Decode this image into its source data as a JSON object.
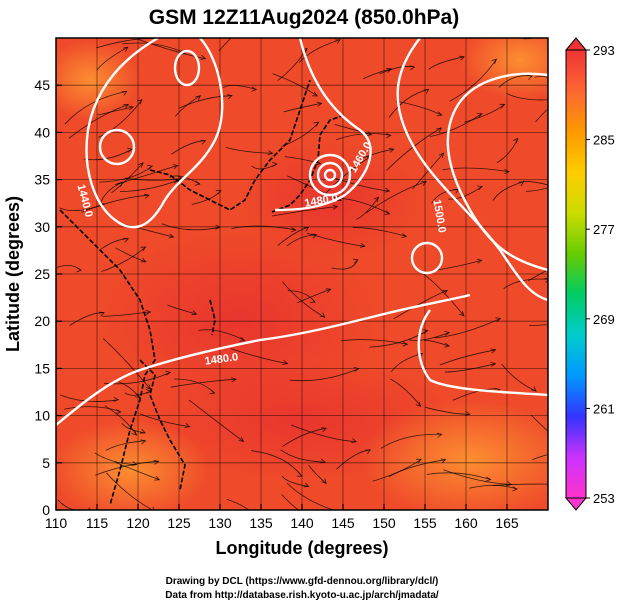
{
  "title": "GSM 12Z11Aug2024 (850.0hPa)",
  "x_axis": {
    "label": "Longitude (degrees)",
    "ticks": [
      "110",
      "115",
      "120",
      "125",
      "130",
      "135",
      "140",
      "145",
      "150",
      "155",
      "160",
      "165"
    ],
    "range": [
      110,
      170
    ]
  },
  "y_axis": {
    "label": "Latitude  (degrees)",
    "ticks": [
      "0",
      "5",
      "10",
      "15",
      "20",
      "25",
      "30",
      "35",
      "40",
      "45"
    ],
    "range": [
      0,
      50
    ]
  },
  "colorbar": {
    "ticks": [
      "253",
      "261",
      "269",
      "277",
      "285",
      "293"
    ],
    "range": [
      253,
      293
    ],
    "colors": [
      "#ff33cc",
      "#cc33ff",
      "#3333ff",
      "#0099ff",
      "#00cccc",
      "#00cc66",
      "#66cc00",
      "#ccdd00",
      "#ffcc00",
      "#ff9900",
      "#ff6633",
      "#ee3333"
    ]
  },
  "contour_labels": [
    "1440.0",
    "1460.0",
    "1480.0",
    "1500.0",
    "1480.0"
  ],
  "credits": {
    "line1": "Drawing by DCL (https://www.gfd-dennou.org/library/dcl/)",
    "line2": "Data from http://database.rish.kyoto-u.ac.jp/arch/jmadata/"
  },
  "colors": {
    "field_base": "#ef4a2a",
    "field_warm": "#ee3333",
    "field_cool": "#ff8a2a",
    "contour": "#ffffff",
    "coast": "#000000"
  }
}
